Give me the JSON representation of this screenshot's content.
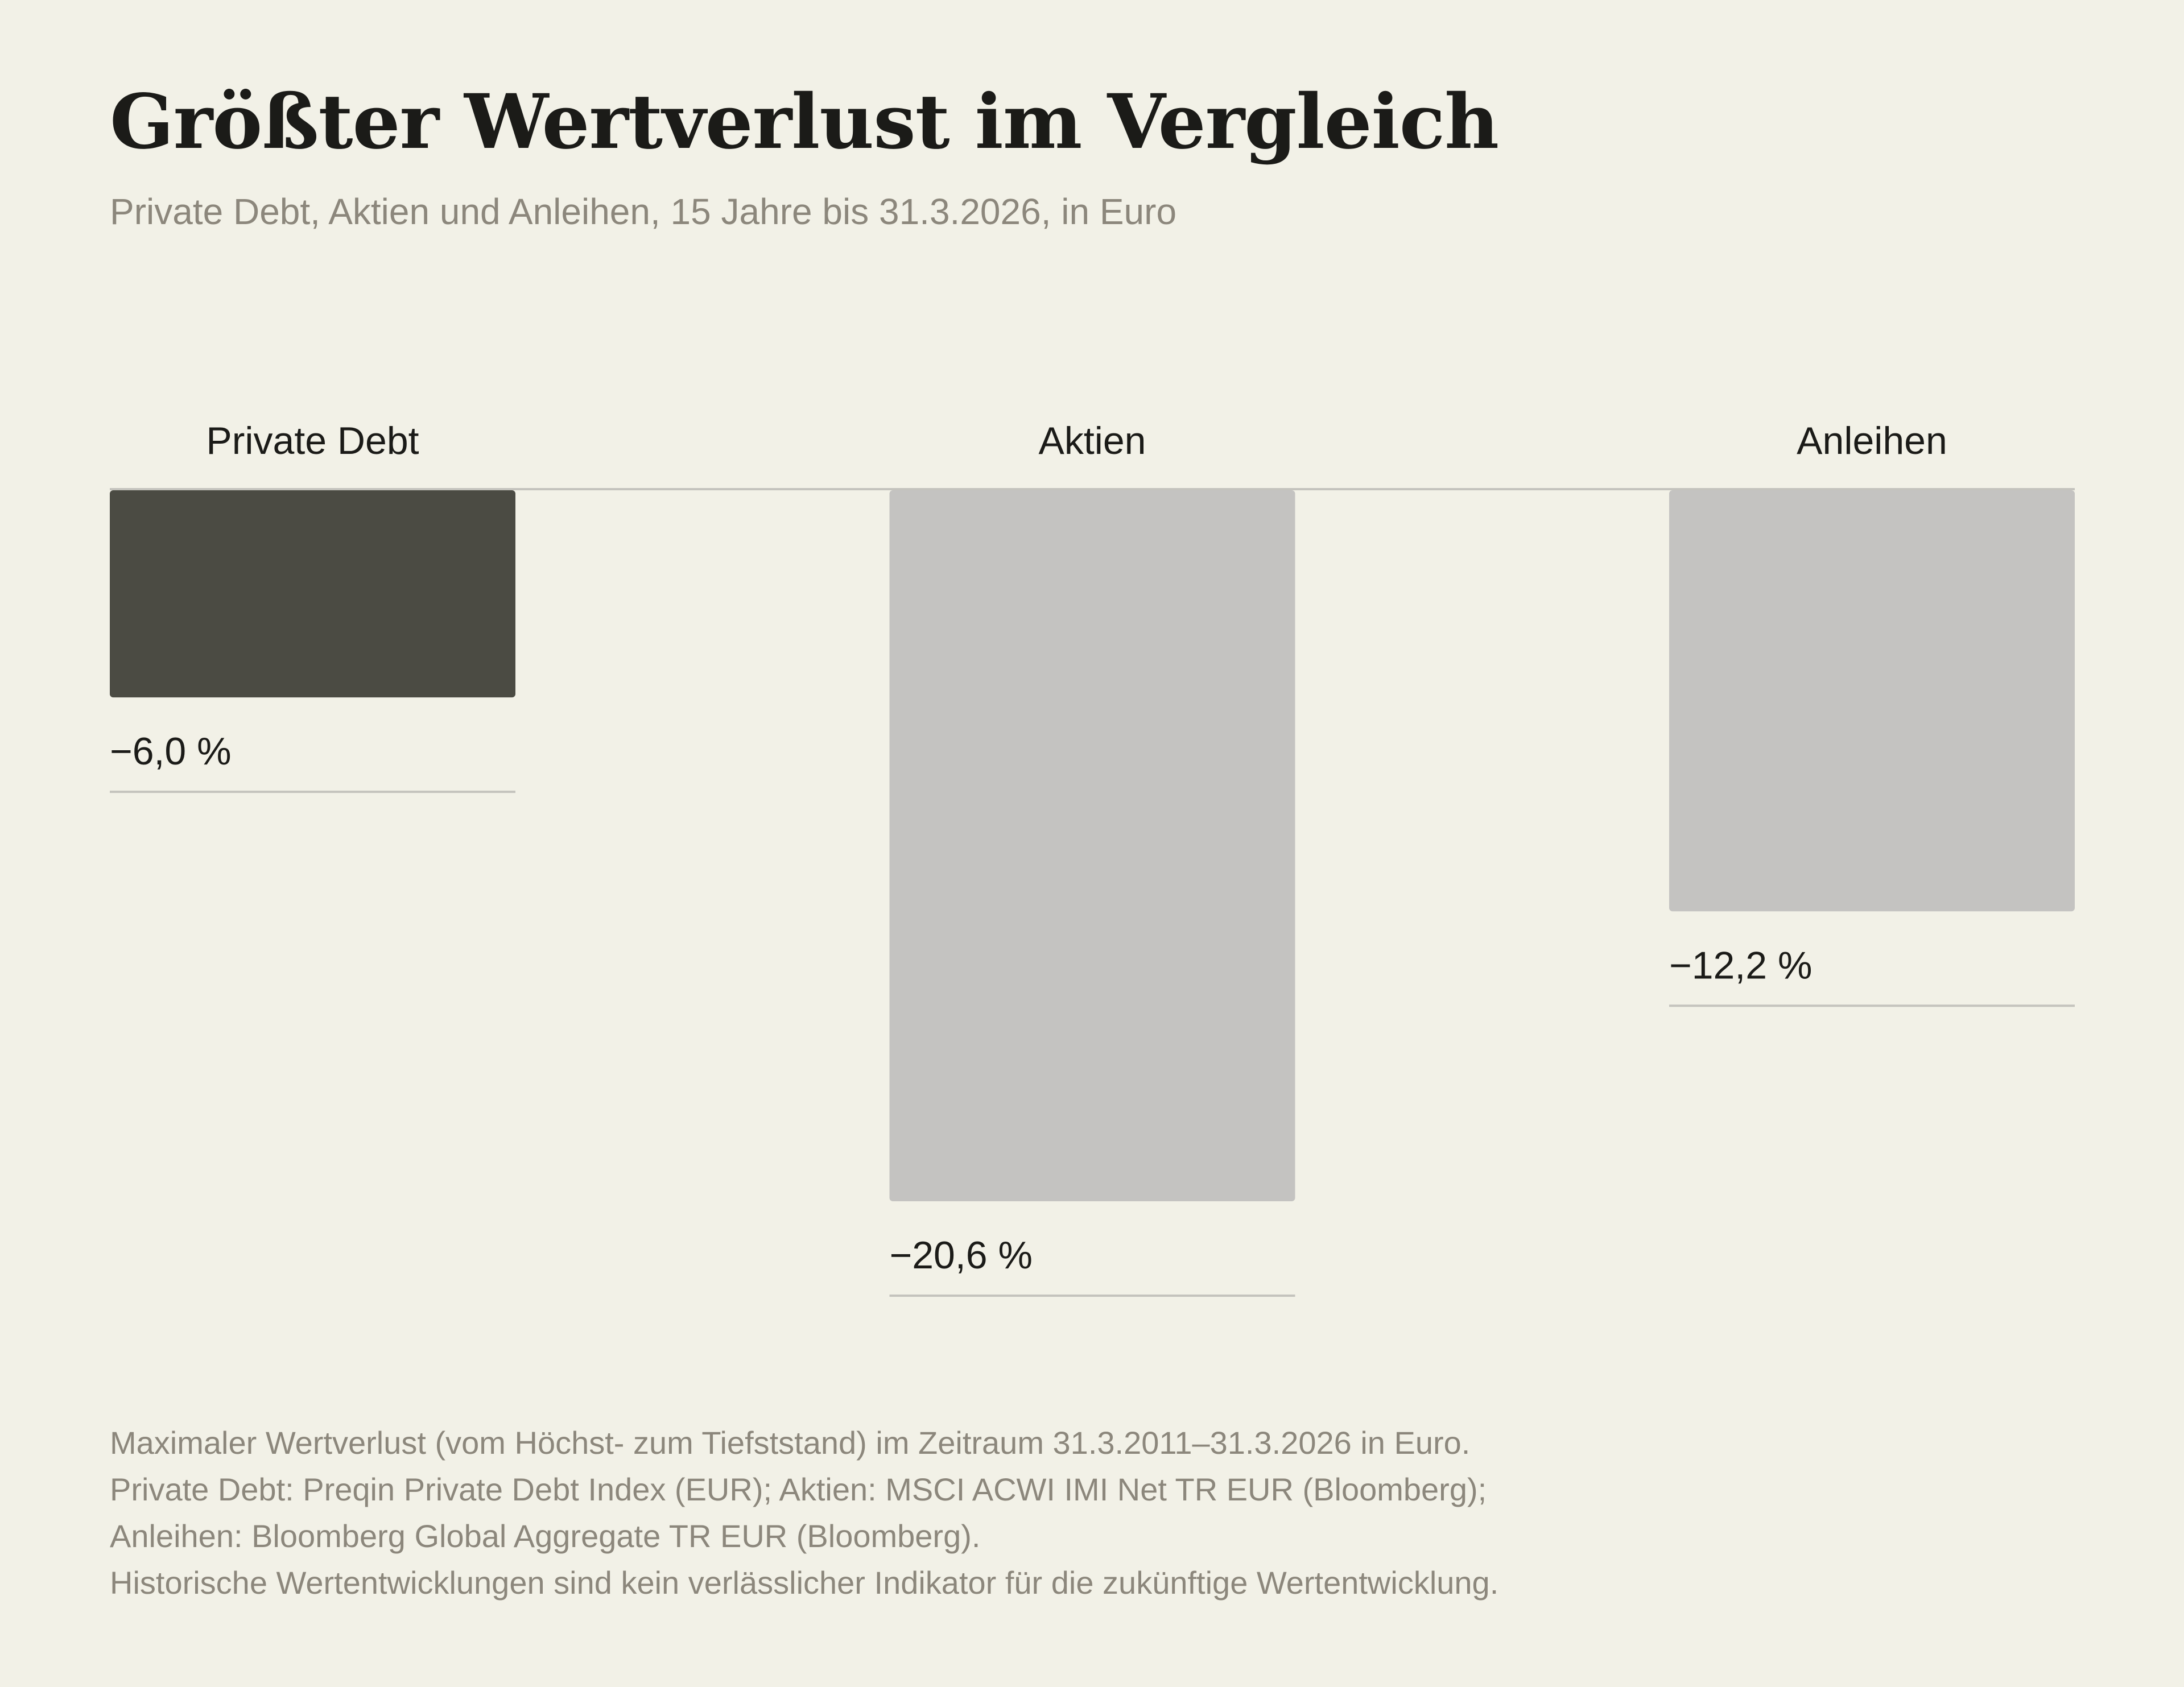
{
  "title": "Größter Wertverlust im Vergleich",
  "subtitle": "Private Debt, Aktien und Anleihen, 15 Jahre bis 31.3.2026, in Euro",
  "chart_data": {
    "type": "bar",
    "orientation": "vertical-down",
    "categories": [
      "Private Debt",
      "Aktien",
      "Anleihen"
    ],
    "values": [
      -6.0,
      -20.6,
      -12.2
    ],
    "value_labels": [
      "−6,0 %",
      "−20,6 %",
      "−12,2 %"
    ],
    "unit": "%",
    "highlight_color": "#4b4b43",
    "default_color": "#c4c3c1",
    "highlight_index": 0,
    "ylim": [
      -20.6,
      0
    ],
    "grid": false,
    "legend": "none"
  },
  "footnotes": [
    "Maximaler Wertverlust (vom Höchst- zum Tiefststand) im Zeitraum 31.3.2011–31.3.2026 in Euro.",
    "Private Debt: Preqin Private Debt Index (EUR); Aktien: MSCI ACWI IMI Net TR EUR (Bloomberg);",
    "Anleihen: Bloomberg Global Aggregate TR EUR (Bloomberg).",
    "Historische Wertentwicklungen sind kein verlässlicher Indikator für die zukünftige Wertentwicklung."
  ]
}
